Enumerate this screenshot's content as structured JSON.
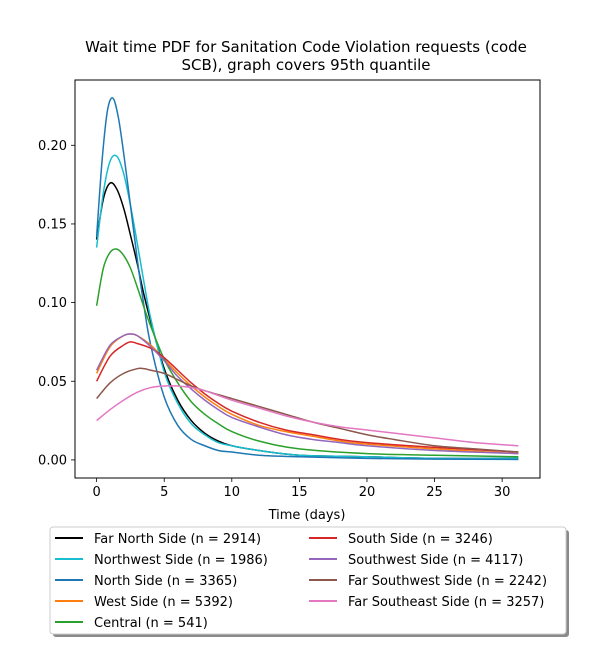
{
  "chart_data": {
    "type": "line",
    "title": "Wait time PDF for Sanitation Code Violation  requests (code SCB), graph covers 95th quantile",
    "title_lines": [
      "Wait time PDF for Sanitation Code Violation  requests (code",
      "SCB), graph covers 95th quantile"
    ],
    "xlabel": "Time (days)",
    "ylabel": "",
    "xlim": [
      -1.6,
      32.8
    ],
    "ylim": [
      -0.0115,
      0.2415
    ],
    "xticks": [
      0,
      5,
      10,
      15,
      20,
      25,
      30
    ],
    "yticks": [
      0.0,
      0.05,
      0.1,
      0.15,
      0.2
    ],
    "ytick_labels": [
      "0.00",
      "0.05",
      "0.10",
      "0.15",
      "0.20"
    ],
    "grid": false,
    "legend_placement": "below plot, two columns",
    "series": [
      {
        "name": "Far North Side (n = 2914)",
        "color": "#000000",
        "x": [
          0,
          0.5,
          1,
          1.5,
          2,
          2.5,
          3,
          3.5,
          4,
          5,
          6,
          7,
          8,
          9,
          10,
          12,
          15,
          20,
          25,
          31.2
        ],
        "y": [
          0.14,
          0.166,
          0.176,
          0.172,
          0.16,
          0.143,
          0.125,
          0.105,
          0.088,
          0.058,
          0.038,
          0.025,
          0.017,
          0.012,
          0.009,
          0.006,
          0.003,
          0.002,
          0.001,
          0.001
        ]
      },
      {
        "name": "Northwest Side (n = 1986)",
        "color": "#17becf",
        "x": [
          0,
          0.5,
          1,
          1.5,
          2,
          2.5,
          3,
          3.5,
          4,
          5,
          6,
          7,
          8,
          9,
          10,
          12,
          15,
          20,
          25,
          31.2
        ],
        "y": [
          0.135,
          0.17,
          0.19,
          0.193,
          0.182,
          0.162,
          0.138,
          0.113,
          0.09,
          0.056,
          0.036,
          0.023,
          0.016,
          0.011,
          0.009,
          0.006,
          0.003,
          0.002,
          0.001,
          0.001
        ]
      },
      {
        "name": "North Side (n = 3365)",
        "color": "#1f77b4",
        "x": [
          0,
          0.4,
          0.8,
          1.2,
          1.6,
          2,
          2.5,
          3,
          3.5,
          4,
          5,
          6,
          7,
          8,
          9,
          10,
          12,
          15,
          20,
          25,
          31.2
        ],
        "y": [
          0.142,
          0.19,
          0.222,
          0.23,
          0.218,
          0.195,
          0.162,
          0.128,
          0.098,
          0.073,
          0.04,
          0.022,
          0.013,
          0.009,
          0.006,
          0.005,
          0.003,
          0.002,
          0.001,
          0.0005,
          0.0003
        ]
      },
      {
        "name": "West Side (n = 5392)",
        "color": "#ff7f0e",
        "x": [
          0,
          1,
          2,
          2.5,
          3,
          4,
          5,
          6,
          7,
          8,
          9,
          10,
          12,
          14,
          16,
          18,
          20,
          25,
          31.2
        ],
        "y": [
          0.055,
          0.072,
          0.079,
          0.08,
          0.079,
          0.073,
          0.064,
          0.055,
          0.047,
          0.04,
          0.034,
          0.029,
          0.022,
          0.018,
          0.015,
          0.012,
          0.01,
          0.007,
          0.004
        ]
      },
      {
        "name": "Central (n = 541)",
        "color": "#2ca02c",
        "x": [
          0,
          0.5,
          1,
          1.5,
          2,
          2.5,
          3,
          3.5,
          4,
          5,
          6,
          7,
          8,
          9,
          10,
          12,
          15,
          20,
          25,
          31.2
        ],
        "y": [
          0.098,
          0.122,
          0.132,
          0.134,
          0.13,
          0.122,
          0.11,
          0.097,
          0.085,
          0.064,
          0.049,
          0.037,
          0.029,
          0.023,
          0.018,
          0.012,
          0.007,
          0.004,
          0.003,
          0.002
        ]
      },
      {
        "name": "South Side (n = 3246)",
        "color": "#d62728",
        "x": [
          0,
          1,
          2,
          2.5,
          3,
          4,
          5,
          6,
          7,
          8,
          9,
          10,
          12,
          14,
          16,
          18,
          20,
          25,
          31.2
        ],
        "y": [
          0.05,
          0.066,
          0.073,
          0.075,
          0.074,
          0.071,
          0.065,
          0.057,
          0.049,
          0.042,
          0.036,
          0.031,
          0.024,
          0.019,
          0.016,
          0.013,
          0.011,
          0.008,
          0.005
        ]
      },
      {
        "name": "Southwest Side (n = 4117)",
        "color": "#9467bd",
        "x": [
          0,
          1,
          2,
          2.5,
          3,
          4,
          5,
          6,
          7,
          8,
          9,
          10,
          12,
          14,
          16,
          18,
          20,
          25,
          31.2
        ],
        "y": [
          0.057,
          0.073,
          0.079,
          0.08,
          0.079,
          0.072,
          0.063,
          0.053,
          0.045,
          0.038,
          0.032,
          0.027,
          0.021,
          0.016,
          0.013,
          0.011,
          0.009,
          0.006,
          0.004
        ]
      },
      {
        "name": "Far Southwest Side (n = 2242)",
        "color": "#8c564b",
        "x": [
          0,
          1,
          2,
          3,
          3.5,
          4,
          5,
          6,
          7,
          8,
          10,
          12,
          14,
          16,
          18,
          20,
          22,
          25,
          28,
          31.2
        ],
        "y": [
          0.039,
          0.049,
          0.055,
          0.058,
          0.058,
          0.057,
          0.055,
          0.051,
          0.047,
          0.044,
          0.039,
          0.034,
          0.029,
          0.024,
          0.02,
          0.016,
          0.013,
          0.009,
          0.007,
          0.005
        ]
      },
      {
        "name": "Far Southeast Side (n = 3257)",
        "color": "#e377c2",
        "x": [
          0,
          1,
          2,
          3,
          4,
          5,
          5.5,
          6,
          7,
          8,
          10,
          12,
          14,
          16,
          18,
          20,
          22,
          25,
          28,
          31.2
        ],
        "y": [
          0.025,
          0.032,
          0.038,
          0.043,
          0.046,
          0.047,
          0.047,
          0.047,
          0.046,
          0.044,
          0.038,
          0.033,
          0.028,
          0.024,
          0.021,
          0.019,
          0.017,
          0.014,
          0.011,
          0.009
        ]
      }
    ]
  }
}
